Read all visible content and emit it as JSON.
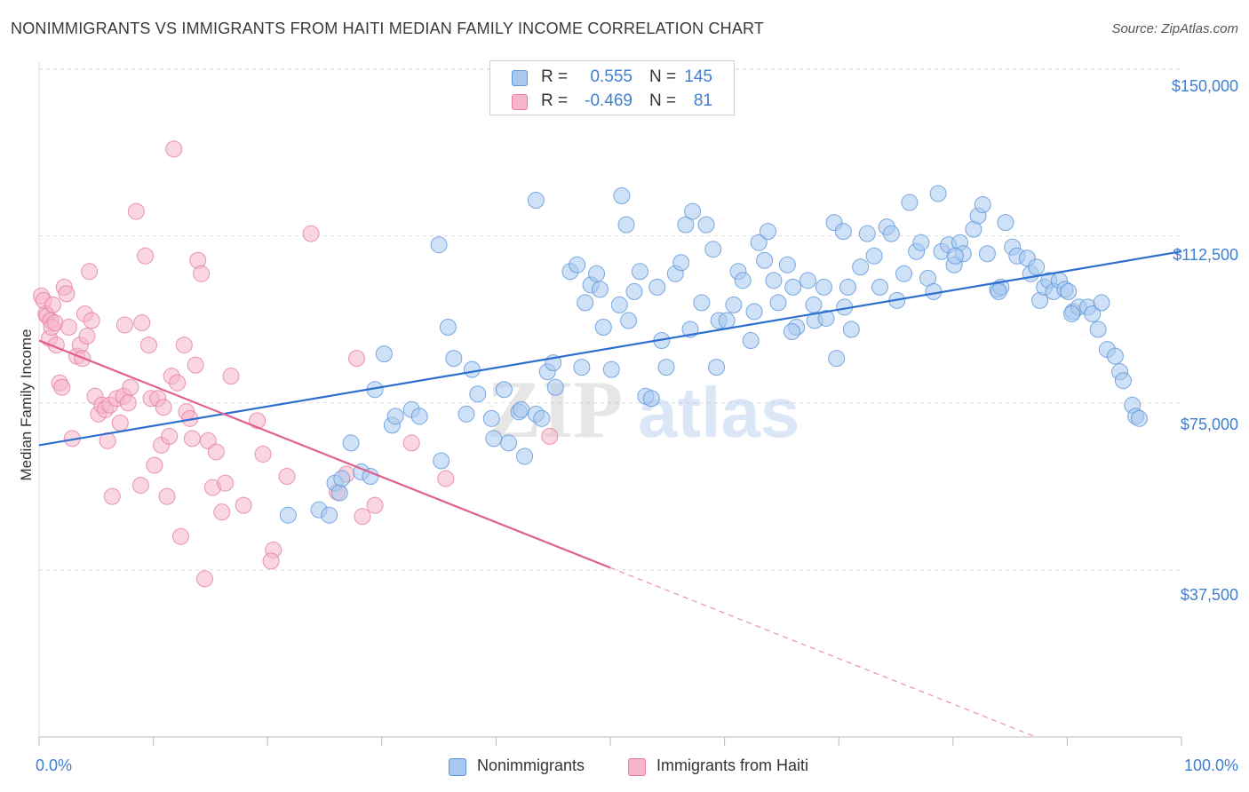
{
  "header": {
    "title": "NONIMMIGRANTS VS IMMIGRANTS FROM HAITI MEDIAN FAMILY INCOME CORRELATION CHART",
    "source": "Source: ZipAtlas.com"
  },
  "watermark": {
    "zip": "ZIP",
    "atlas": "atlas"
  },
  "legend": {
    "r_label": "R =",
    "n_label": "N =",
    "rows": [
      {
        "r": "0.555",
        "n": "145",
        "color": "#a8c8ef"
      },
      {
        "r": "-0.469",
        "n": "81",
        "color": "#f6b5c8"
      }
    ]
  },
  "bottom_legend": [
    "Nonimmigrants",
    "Immigrants from Haiti"
  ],
  "colors": {
    "blue_fill": "#a8c8ef",
    "blue_stroke": "#5b95da",
    "blue_line": "#2c6fcf",
    "pink_fill": "#f6b5c8",
    "pink_stroke": "#e47d9f",
    "pink_line": "#e0618e",
    "axis_text": "#3f7fd0",
    "grid": "#dddddd"
  },
  "chart_data": {
    "type": "scatter",
    "title": "NONIMMIGRANTS VS IMMIGRANTS FROM HAITI MEDIAN FAMILY INCOME CORRELATION CHART",
    "xlabel": "",
    "ylabel": "Median Family Income",
    "xlim": [
      0,
      100
    ],
    "ylim": [
      0,
      153500
    ],
    "x_tick_labels": [
      "0.0%",
      "100.0%"
    ],
    "y_ticks": [
      37500,
      75000,
      112500,
      150000
    ],
    "y_tick_labels": [
      "$37,500",
      "$75,000",
      "$112,500",
      "$150,000"
    ],
    "grid": "horizontal dashed",
    "legend_position": "top-center",
    "series": [
      {
        "name": "Nonimmigrants",
        "r": 0.555,
        "n": 145,
        "trend": {
          "x": [
            0,
            100
          ],
          "y": [
            65500,
            109000
          ]
        },
        "points": [
          [
            21.8,
            49800
          ],
          [
            24.5,
            51000
          ],
          [
            25.4,
            49800
          ],
          [
            25.9,
            57000
          ],
          [
            26.3,
            54800
          ],
          [
            26.5,
            58000
          ],
          [
            27.3,
            66000
          ],
          [
            28.2,
            59500
          ],
          [
            29.0,
            58500
          ],
          [
            30.2,
            86000
          ],
          [
            29.4,
            78000
          ],
          [
            30.9,
            70000
          ],
          [
            31.2,
            72000
          ],
          [
            32.6,
            73500
          ],
          [
            33.3,
            72000
          ],
          [
            35.2,
            62000
          ],
          [
            35.8,
            92000
          ],
          [
            35.0,
            110500
          ],
          [
            36.3,
            85000
          ],
          [
            37.4,
            72500
          ],
          [
            37.9,
            82500
          ],
          [
            38.4,
            77000
          ],
          [
            39.6,
            71500
          ],
          [
            39.8,
            67000
          ],
          [
            40.7,
            78000
          ],
          [
            41.1,
            66000
          ],
          [
            42.0,
            73000
          ],
          [
            42.5,
            63000
          ],
          [
            42.2,
            73500
          ],
          [
            43.5,
            120500
          ],
          [
            43.5,
            72500
          ],
          [
            44.0,
            71500
          ],
          [
            44.5,
            82000
          ],
          [
            45.0,
            84000
          ],
          [
            45.2,
            78500
          ],
          [
            46.5,
            104500
          ],
          [
            47.1,
            106000
          ],
          [
            47.5,
            83000
          ],
          [
            47.8,
            97500
          ],
          [
            48.3,
            101500
          ],
          [
            48.8,
            104000
          ],
          [
            49.1,
            100500
          ],
          [
            49.4,
            92000
          ],
          [
            50.1,
            82500
          ],
          [
            50.8,
            97000
          ],
          [
            51.0,
            121500
          ],
          [
            51.4,
            115000
          ],
          [
            51.6,
            93500
          ],
          [
            52.1,
            100000
          ],
          [
            52.6,
            104500
          ],
          [
            53.1,
            76500
          ],
          [
            53.6,
            76000
          ],
          [
            54.1,
            101000
          ],
          [
            54.5,
            89000
          ],
          [
            54.9,
            83000
          ],
          [
            55.7,
            104000
          ],
          [
            56.2,
            106500
          ],
          [
            56.6,
            115000
          ],
          [
            57.2,
            118000
          ],
          [
            57.0,
            91500
          ],
          [
            58.0,
            97500
          ],
          [
            58.4,
            115000
          ],
          [
            59.0,
            109500
          ],
          [
            59.3,
            83000
          ],
          [
            59.5,
            93500
          ],
          [
            60.2,
            93500
          ],
          [
            60.8,
            97000
          ],
          [
            61.2,
            104500
          ],
          [
            61.6,
            102500
          ],
          [
            62.3,
            89000
          ],
          [
            62.6,
            95500
          ],
          [
            63.0,
            111000
          ],
          [
            63.5,
            107000
          ],
          [
            63.8,
            113500
          ],
          [
            64.3,
            102500
          ],
          [
            64.7,
            97500
          ],
          [
            65.5,
            106000
          ],
          [
            66.0,
            101000
          ],
          [
            66.3,
            92000
          ],
          [
            67.3,
            102500
          ],
          [
            67.8,
            97000
          ],
          [
            67.9,
            93500
          ],
          [
            68.7,
            101000
          ],
          [
            69.6,
            115500
          ],
          [
            69.8,
            85000
          ],
          [
            70.4,
            113500
          ],
          [
            70.8,
            101000
          ],
          [
            71.1,
            91500
          ],
          [
            71.9,
            105500
          ],
          [
            72.5,
            113000
          ],
          [
            73.1,
            108000
          ],
          [
            73.6,
            101000
          ],
          [
            74.2,
            114500
          ],
          [
            74.6,
            113000
          ],
          [
            75.1,
            98000
          ],
          [
            75.7,
            104000
          ],
          [
            76.2,
            120000
          ],
          [
            76.8,
            109000
          ],
          [
            77.2,
            111000
          ],
          [
            77.8,
            103000
          ],
          [
            78.3,
            100000
          ],
          [
            78.7,
            122000
          ],
          [
            79.0,
            109000
          ],
          [
            79.6,
            110500
          ],
          [
            80.1,
            106000
          ],
          [
            80.6,
            111000
          ],
          [
            80.9,
            108500
          ],
          [
            81.8,
            114000
          ],
          [
            82.2,
            117000
          ],
          [
            82.6,
            119500
          ],
          [
            83.0,
            108500
          ],
          [
            83.9,
            100500
          ],
          [
            84.2,
            101000
          ],
          [
            84.6,
            115500
          ],
          [
            85.2,
            110000
          ],
          [
            85.6,
            108000
          ],
          [
            86.5,
            107500
          ],
          [
            86.8,
            104000
          ],
          [
            87.3,
            105500
          ],
          [
            87.6,
            98000
          ],
          [
            88.0,
            101000
          ],
          [
            88.4,
            102500
          ],
          [
            88.8,
            100000
          ],
          [
            89.3,
            102500
          ],
          [
            89.8,
            100500
          ],
          [
            90.5,
            95500
          ],
          [
            91.0,
            96500
          ],
          [
            91.8,
            96500
          ],
          [
            92.2,
            95000
          ],
          [
            92.7,
            91500
          ],
          [
            93.0,
            97500
          ],
          [
            93.5,
            87000
          ],
          [
            94.2,
            85500
          ],
          [
            94.6,
            82000
          ],
          [
            94.9,
            80000
          ],
          [
            95.7,
            74500
          ],
          [
            96.0,
            72000
          ],
          [
            96.3,
            71500
          ],
          [
            90.1,
            100000
          ],
          [
            90.4,
            95000
          ],
          [
            84.0,
            100000
          ],
          [
            80.2,
            108000
          ],
          [
            70.5,
            96500
          ],
          [
            68.9,
            94000
          ],
          [
            65.9,
            91000
          ]
        ]
      },
      {
        "name": "Immigrants from Haiti",
        "r": -0.469,
        "n": 81,
        "trend": {
          "x": [
            0,
            50
          ],
          "y": [
            89000,
            38000
          ],
          "dashed_to": {
            "x": 100,
            "y": -13000
          }
        },
        "points": [
          [
            0.2,
            99000
          ],
          [
            0.4,
            98000
          ],
          [
            0.6,
            95000
          ],
          [
            0.7,
            94500
          ],
          [
            0.9,
            89500
          ],
          [
            1.0,
            93500
          ],
          [
            1.1,
            92000
          ],
          [
            1.2,
            97000
          ],
          [
            1.4,
            93000
          ],
          [
            1.5,
            88000
          ],
          [
            1.8,
            79500
          ],
          [
            2.0,
            78500
          ],
          [
            2.2,
            101000
          ],
          [
            2.4,
            99500
          ],
          [
            2.6,
            92000
          ],
          [
            2.9,
            67000
          ],
          [
            3.3,
            85500
          ],
          [
            3.6,
            88000
          ],
          [
            3.8,
            85000
          ],
          [
            4.0,
            95000
          ],
          [
            4.2,
            90000
          ],
          [
            4.4,
            104500
          ],
          [
            4.6,
            93500
          ],
          [
            4.9,
            76500
          ],
          [
            5.2,
            72500
          ],
          [
            5.5,
            74500
          ],
          [
            5.8,
            73500
          ],
          [
            6.0,
            66500
          ],
          [
            6.2,
            74500
          ],
          [
            6.4,
            54000
          ],
          [
            6.8,
            76000
          ],
          [
            7.1,
            70500
          ],
          [
            7.4,
            76500
          ],
          [
            7.5,
            92500
          ],
          [
            7.8,
            75000
          ],
          [
            8.0,
            78500
          ],
          [
            8.5,
            118000
          ],
          [
            8.9,
            56500
          ],
          [
            9.0,
            93000
          ],
          [
            9.3,
            108000
          ],
          [
            9.6,
            88000
          ],
          [
            9.8,
            76000
          ],
          [
            10.1,
            61000
          ],
          [
            10.4,
            76000
          ],
          [
            10.7,
            65500
          ],
          [
            10.9,
            74000
          ],
          [
            11.2,
            54000
          ],
          [
            11.4,
            67500
          ],
          [
            11.6,
            81000
          ],
          [
            11.8,
            132000
          ],
          [
            12.1,
            79500
          ],
          [
            12.4,
            45000
          ],
          [
            12.7,
            88000
          ],
          [
            12.9,
            73000
          ],
          [
            13.2,
            71500
          ],
          [
            13.4,
            67000
          ],
          [
            13.7,
            83500
          ],
          [
            13.9,
            107000
          ],
          [
            14.2,
            104000
          ],
          [
            14.5,
            35500
          ],
          [
            14.8,
            66500
          ],
          [
            15.2,
            56000
          ],
          [
            15.5,
            64000
          ],
          [
            16.0,
            50500
          ],
          [
            16.3,
            57000
          ],
          [
            16.8,
            81000
          ],
          [
            17.9,
            52000
          ],
          [
            19.1,
            71000
          ],
          [
            19.6,
            63500
          ],
          [
            20.5,
            42000
          ],
          [
            20.3,
            39500
          ],
          [
            21.7,
            58500
          ],
          [
            23.8,
            113000
          ],
          [
            26.1,
            55000
          ],
          [
            26.9,
            59000
          ],
          [
            27.8,
            85000
          ],
          [
            28.3,
            49500
          ],
          [
            29.4,
            52000
          ],
          [
            32.6,
            66000
          ],
          [
            35.6,
            58000
          ],
          [
            44.7,
            67500
          ]
        ]
      }
    ]
  }
}
